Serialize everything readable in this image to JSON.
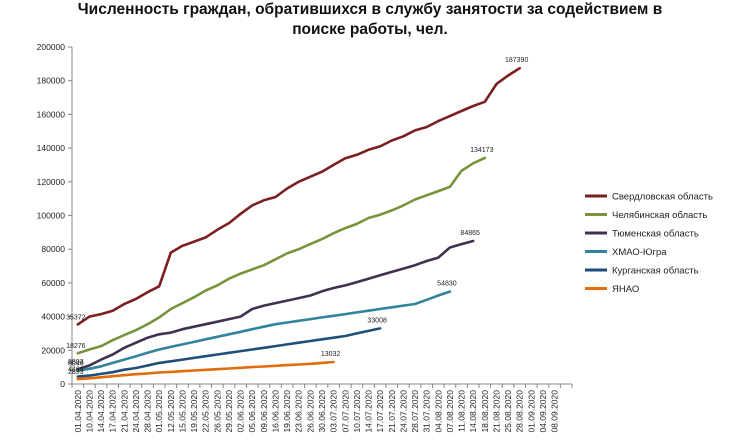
{
  "chart_data": {
    "type": "line",
    "title_line1": "Численность граждан, обратившихся в службу занятости за содействием в",
    "title_line2": "поиске работы, чел.",
    "xlabel": "",
    "ylabel": "",
    "ylim": [
      0,
      200000
    ],
    "yticks": [
      0,
      20000,
      40000,
      60000,
      80000,
      100000,
      120000,
      140000,
      160000,
      180000,
      200000
    ],
    "ytick_labels": [
      "0",
      "20000",
      "40000",
      "60000",
      "80000",
      "100000",
      "120000",
      "140000",
      "160000",
      "180000",
      "200000"
    ],
    "grid": false,
    "legend_position": "right",
    "x_tick_labels": [
      "01.04.2020",
      "10.04.2020",
      "14.04.2020",
      "17.04.2020",
      "21.04.2020",
      "24.04.2020",
      "28.04.2020",
      "01.05.2020",
      "12.05.2020",
      "15.05.2020",
      "19.05.2020",
      "22.05.2020",
      "26.05.2020",
      "29.05.2020",
      "02.06.2020",
      "05.06.2020",
      "09.06.2020",
      "16.06.2020",
      "19.06.2020",
      "23.06.2020",
      "26.06.2020",
      "30.06.2020",
      "03.07.2020",
      "07.07.2020",
      "10.07.2020",
      "14.07.2020",
      "17.07.2020",
      "21.07.2020",
      "24.07.2020",
      "28.07.2020",
      "31.07.2020",
      "04.08.2020",
      "07.08.2020",
      "11.08.2020",
      "14.08.2020",
      "18.08.2020",
      "21.08.2020",
      "25.08.2020",
      "28.08.2020",
      "01.09.2020",
      "04.09.2020",
      "08.09.2020"
    ],
    "x_count": 43,
    "series": [
      {
        "name": "Свердловская область",
        "color": "#7b1f1f",
        "start_label": "35372",
        "end_label": "187390",
        "values": [
          35372,
          40000,
          41500,
          43500,
          47500,
          50500,
          54500,
          58000,
          78000,
          82000,
          84500,
          87000,
          91500,
          95500,
          101000,
          106000,
          109000,
          111000,
          116000,
          120000,
          123000,
          126000,
          130000,
          134000,
          136000,
          139000,
          141000,
          144500,
          147000,
          150500,
          152500,
          156000,
          159000,
          162000,
          165000,
          167500,
          178000,
          183000,
          187390
        ]
      },
      {
        "name": "Челябинская область",
        "color": "#77933c",
        "start_label": "18276",
        "end_label": "134173",
        "values": [
          18276,
          20500,
          22500,
          26000,
          29000,
          32000,
          35500,
          39500,
          44500,
          48000,
          51500,
          55500,
          58500,
          62500,
          65500,
          68000,
          70500,
          74000,
          77500,
          80000,
          83000,
          86000,
          89500,
          92500,
          95000,
          98500,
          100500,
          103000,
          106000,
          109500,
          112000,
          114500,
          117000,
          126500,
          131000,
          134173
        ]
      },
      {
        "name": "Тюменская область",
        "color": "#403151",
        "start_label": "8803",
        "end_label": "84865",
        "values": [
          8803,
          11000,
          14500,
          17500,
          21500,
          24500,
          27500,
          29500,
          30500,
          32500,
          34000,
          35500,
          37000,
          38500,
          40000,
          44500,
          46500,
          48000,
          49500,
          51000,
          52500,
          55000,
          57000,
          58500,
          60500,
          62500,
          64500,
          66500,
          68500,
          70500,
          73000,
          75000,
          81000,
          83000,
          84865
        ]
      },
      {
        "name": "ХМАО-Югра",
        "color": "#31849b",
        "start_label": "8046",
        "end_label": "54830",
        "values": [
          8046,
          9000,
          10500,
          12500,
          14500,
          16500,
          18500,
          20500,
          22000,
          23500,
          25000,
          26500,
          28000,
          29500,
          31000,
          32500,
          34000,
          35500,
          36500,
          37500,
          38500,
          39500,
          40500,
          41500,
          42500,
          43500,
          44500,
          45500,
          46500,
          47500,
          50000,
          52500,
          54830
        ]
      },
      {
        "name": "Курганская область",
        "color": "#1f4e79",
        "start_label": "4466",
        "end_label": "33008",
        "values": [
          4466,
          5000,
          6000,
          7000,
          8500,
          9500,
          11000,
          12500,
          13500,
          14500,
          15500,
          16500,
          17500,
          18500,
          19500,
          20500,
          21500,
          22500,
          23500,
          24500,
          25500,
          26500,
          27500,
          28500,
          30000,
          31500,
          33008
        ]
      },
      {
        "name": "ЯНАО",
        "color": "#e26b0a",
        "start_label": "2893",
        "end_label": "13032",
        "values": [
          2893,
          3400,
          4000,
          4600,
          5200,
          5800,
          6300,
          6800,
          7200,
          7600,
          8000,
          8400,
          8800,
          9200,
          9600,
          10000,
          10400,
          10800,
          11200,
          11600,
          12000,
          12500,
          13032
        ]
      }
    ]
  }
}
